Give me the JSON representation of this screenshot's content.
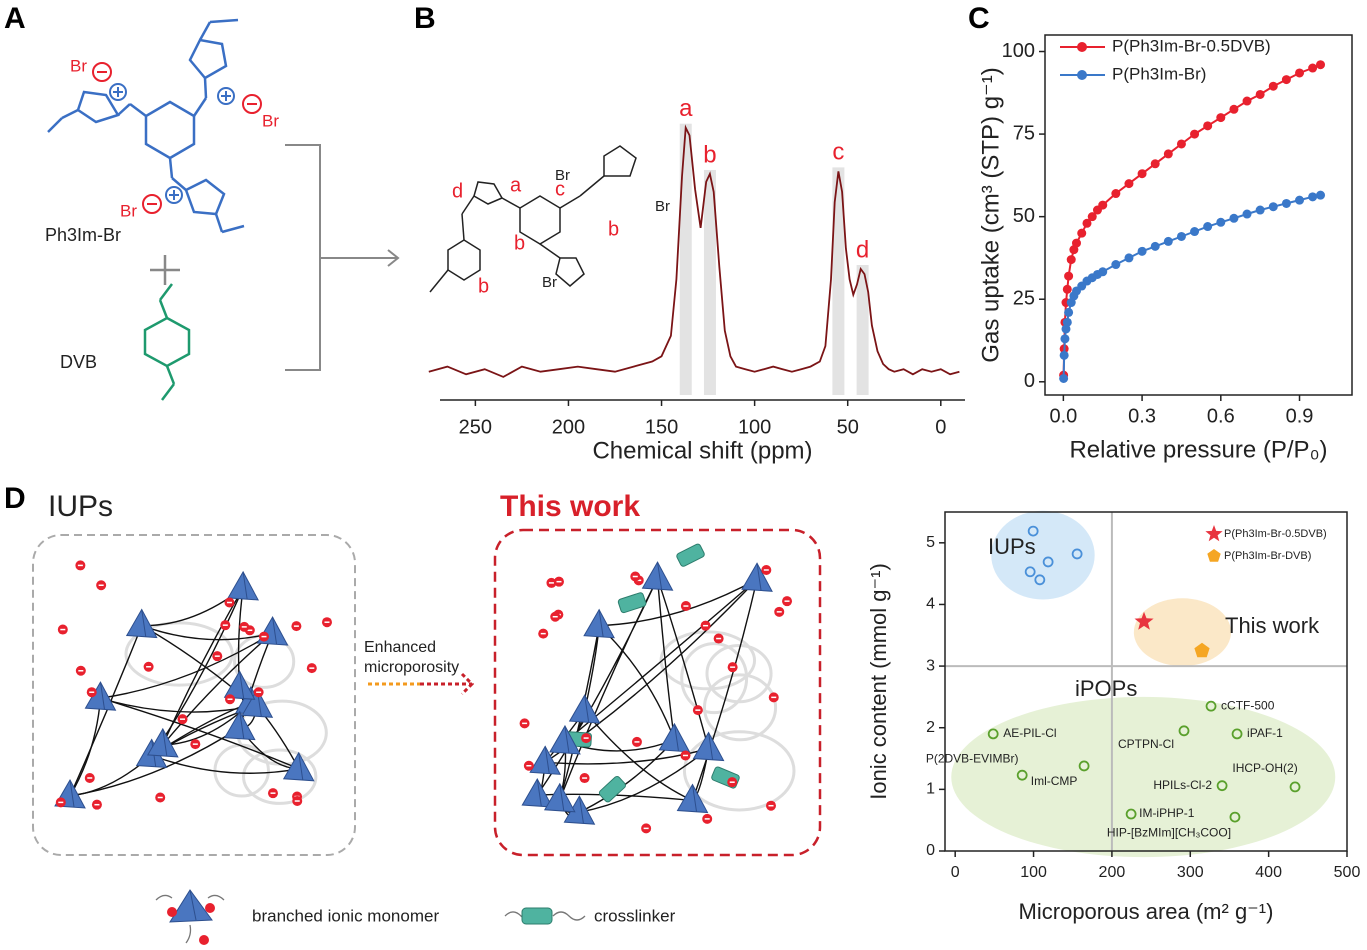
{
  "panels": {
    "A": {
      "label": "A",
      "counterions": [
        "Br",
        "Br",
        "Br"
      ],
      "monomer": "Ph3Im-Br",
      "crosslinker": "DVB"
    },
    "B": {
      "label": "B",
      "structure_labels": [
        "d",
        "a",
        "c",
        "b",
        "b",
        "b"
      ],
      "counterions": [
        "Br",
        "Br",
        "Br"
      ]
    },
    "C": {
      "label": "C"
    },
    "D": {
      "label": "D",
      "left_title": "IUPs",
      "right_title": "This work",
      "arrow_label": [
        "Enhanced",
        "microporosity"
      ],
      "legend": [
        "branched ionic monomer",
        "crosslinker"
      ]
    }
  },
  "chart_data": [
    {
      "type": "line",
      "xlabel": "Chemical shift (ppm)",
      "x": [
        275,
        265,
        255,
        245,
        235,
        225,
        215,
        205,
        195,
        185,
        175,
        165,
        155,
        150,
        145,
        142,
        139,
        137,
        135,
        132,
        129,
        126,
        124,
        122,
        119,
        116,
        113,
        110,
        105,
        100,
        95,
        90,
        85,
        80,
        75,
        70,
        65,
        62,
        59,
        57,
        55,
        53,
        51,
        49,
        47,
        45,
        43,
        41,
        39,
        37,
        34,
        31,
        28,
        25,
        20,
        15,
        10,
        5,
        0,
        -5,
        -10
      ],
      "series": [
        {
          "color": "#7b1416",
          "values": [
            4,
            6,
            3,
            5,
            2,
            6,
            4,
            5,
            6,
            5,
            4,
            6,
            8,
            10,
            18,
            40,
            80,
            99,
            96,
            75,
            60,
            78,
            81,
            74,
            45,
            20,
            10,
            6,
            5,
            4,
            5,
            6,
            5,
            4,
            5,
            6,
            8,
            14,
            40,
            70,
            82,
            74,
            52,
            40,
            34,
            38,
            44,
            42,
            35,
            22,
            12,
            7,
            5,
            4,
            5,
            3,
            5,
            4,
            5,
            3,
            4
          ]
        }
      ],
      "xlim": [
        269,
        -13
      ],
      "xticks": [
        250,
        200,
        150,
        100,
        50,
        0
      ],
      "ylim": [
        -7,
        102
      ],
      "annotations": [
        {
          "text": "a",
          "x": 137
        },
        {
          "text": "b",
          "x": 124
        },
        {
          "text": "c",
          "x": 55
        },
        {
          "text": "d",
          "x": 42
        }
      ]
    },
    {
      "type": "line",
      "ylabel": "Gas uptake (cm³ (STP) g⁻¹)",
      "xlabel": "Relative pressure (P/P₀)",
      "x": [
        0.001,
        0.003,
        0.006,
        0.01,
        0.015,
        0.02,
        0.03,
        0.04,
        0.05,
        0.07,
        0.09,
        0.11,
        0.13,
        0.15,
        0.2,
        0.25,
        0.3,
        0.35,
        0.4,
        0.45,
        0.5,
        0.55,
        0.6,
        0.65,
        0.7,
        0.75,
        0.8,
        0.85,
        0.9,
        0.95,
        0.98
      ],
      "series": [
        {
          "name": "P(Ph3Im-Br-0.5DVB)",
          "color": "#e8212e",
          "values": [
            2,
            10,
            18,
            24,
            28,
            32,
            37,
            40,
            42,
            45,
            48,
            50,
            52,
            53.5,
            57,
            60,
            63,
            66,
            69,
            72,
            75,
            77.5,
            80,
            82.5,
            85,
            87,
            89.5,
            91.5,
            93.5,
            95,
            96
          ]
        },
        {
          "name": "P(Ph3Im-Br)",
          "color": "#3a78c9",
          "values": [
            1,
            8,
            13,
            16,
            18,
            21,
            24,
            26,
            27.5,
            29,
            30.5,
            31.5,
            32.5,
            33.3,
            35.5,
            37.5,
            39.5,
            41,
            42.5,
            44,
            45.5,
            47,
            48.3,
            49.5,
            50.8,
            52,
            53,
            54,
            55,
            56,
            56.5
          ]
        }
      ],
      "xlim": [
        -0.07,
        1.1
      ],
      "xticks": [
        {
          "value": 0,
          "label": "0.0"
        },
        0.3,
        0.6,
        0.9
      ],
      "ylim": [
        -4,
        105
      ],
      "yticks": [
        0,
        25,
        50,
        75,
        100
      ],
      "legend": "upper left"
    },
    {
      "type": "scatter",
      "ylabel": "Ionic content (mmol g⁻¹)",
      "xlabel": "Microporous area (m² g⁻¹)",
      "xlim": [
        -13,
        500
      ],
      "xticks": [
        0,
        100,
        200,
        300,
        400,
        500
      ],
      "ylim": [
        0,
        5.5
      ],
      "yticks": [
        0,
        1,
        2,
        3,
        4,
        5
      ],
      "reference_lines": {
        "x": 200,
        "y": 3
      },
      "legend": "upper right",
      "series": [
        {
          "name": "P(Ph3Im-Br-0.5DVB)",
          "color": "#e8343f",
          "marker": "star",
          "x": [
            241
          ],
          "values": [
            3.72
          ]
        },
        {
          "name": "P(Ph3Im-Br-DVB)",
          "color": "#f5a623",
          "marker": "pentagon",
          "x": [
            315
          ],
          "values": [
            3.25
          ]
        }
      ],
      "groups": [
        {
          "label": "IUPs",
          "color": "#4a90d9",
          "x": [
            99.5,
            155.6,
            118.6,
            95.7,
            108
          ],
          "values": [
            5.19,
            4.82,
            4.69,
            4.53,
            4.4
          ]
        },
        {
          "label": "iPOPs",
          "color": "#5aa02c",
          "point_labels": [
            "AE-PIL-Cl",
            "P(2DVB-EVIMBr)",
            "Iml-CMP",
            "IM-iPHP-1",
            "CPTPN-Cl",
            "cCTF-500",
            "iPAF-1",
            "HPILs-Cl-2",
            "IHCP-OH(2)",
            "HIP-[BzMIm][CH₃COO]"
          ],
          "x": [
            48.5,
            85.5,
            164.5,
            224.5,
            292,
            326.5,
            359.7,
            340.6,
            433.7,
            357
          ],
          "values": [
            1.9,
            1.23,
            1.38,
            0.6,
            1.95,
            2.35,
            1.9,
            1.06,
            1.04,
            0.55
          ]
        }
      ],
      "annotations": [
        {
          "text": "This work"
        }
      ]
    }
  ]
}
